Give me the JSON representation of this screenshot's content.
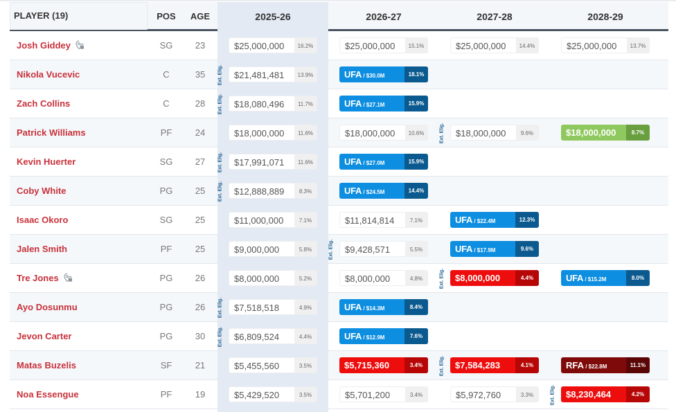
{
  "header": {
    "player_label": "PLAYER (19)",
    "pos_label": "POS",
    "age_label": "AGE",
    "seasons": [
      "2025-26",
      "2026-27",
      "2027-28",
      "2028-29"
    ]
  },
  "ext_label": "Ext. Elig.",
  "colors": {
    "player_name": "#c8313a",
    "ufa": "#0d8ee0",
    "ufa_pct": "#0b5a8f",
    "rfa": "#7f0a0a",
    "option_red": "#ee0d0d",
    "option_green": "#8fc85e",
    "highlight_column": "#e4eaf3",
    "header_border": "#4a5360"
  },
  "rows": [
    {
      "name": "Josh Giddey",
      "lock": true,
      "pos": "SG",
      "age": "23",
      "ext": [],
      "cells": [
        {
          "type": "plain",
          "amount": "$25,000,000",
          "pct": "16.2%"
        },
        {
          "type": "plain",
          "amount": "$25,000,000",
          "pct": "15.1%"
        },
        {
          "type": "plain",
          "amount": "$25,000,000",
          "pct": "14.4%"
        },
        {
          "type": "plain",
          "amount": "$25,000,000",
          "pct": "13.7%"
        }
      ]
    },
    {
      "name": "Nikola Vucevic",
      "lock": false,
      "pos": "C",
      "age": "35",
      "ext": [
        0
      ],
      "cells": [
        {
          "type": "plain",
          "amount": "$21,481,481",
          "pct": "13.9%"
        },
        {
          "type": "ufa",
          "label": "UFA",
          "est": " / $30.0M",
          "pct": "18.1%"
        },
        null,
        null
      ]
    },
    {
      "name": "Zach Collins",
      "lock": false,
      "pos": "C",
      "age": "28",
      "ext": [
        0
      ],
      "cells": [
        {
          "type": "plain",
          "amount": "$18,080,496",
          "pct": "11.7%"
        },
        {
          "type": "ufa",
          "label": "UFA",
          "est": " / $27.1M",
          "pct": "15.9%"
        },
        null,
        null
      ]
    },
    {
      "name": "Patrick Williams",
      "lock": false,
      "pos": "PF",
      "age": "24",
      "ext": [
        2
      ],
      "cells": [
        {
          "type": "plain",
          "amount": "$18,000,000",
          "pct": "11.6%"
        },
        {
          "type": "plain",
          "amount": "$18,000,000",
          "pct": "10.6%"
        },
        {
          "type": "plain",
          "amount": "$18,000,000",
          "pct": "9.6%"
        },
        {
          "type": "green",
          "amount": "$18,000,000",
          "pct": "8.7%"
        }
      ]
    },
    {
      "name": "Kevin Huerter",
      "lock": false,
      "pos": "SG",
      "age": "27",
      "ext": [
        0
      ],
      "cells": [
        {
          "type": "plain",
          "amount": "$17,991,071",
          "pct": "11.6%"
        },
        {
          "type": "ufa",
          "label": "UFA",
          "est": " / $27.0M",
          "pct": "15.9%"
        },
        null,
        null
      ]
    },
    {
      "name": "Coby White",
      "lock": false,
      "pos": "PG",
      "age": "25",
      "ext": [
        0
      ],
      "cells": [
        {
          "type": "plain",
          "amount": "$12,888,889",
          "pct": "8.3%"
        },
        {
          "type": "ufa",
          "label": "UFA",
          "est": " / $24.5M",
          "pct": "14.4%"
        },
        null,
        null
      ]
    },
    {
      "name": "Isaac Okoro",
      "lock": false,
      "pos": "SG",
      "age": "25",
      "ext": [],
      "cells": [
        {
          "type": "plain",
          "amount": "$11,000,000",
          "pct": "7.1%"
        },
        {
          "type": "plain",
          "amount": "$11,814,814",
          "pct": "7.1%"
        },
        {
          "type": "ufa",
          "label": "UFA",
          "est": " / $22.4M",
          "pct": "12.3%"
        },
        null
      ]
    },
    {
      "name": "Jalen Smith",
      "lock": false,
      "pos": "PF",
      "age": "25",
      "ext": [
        1
      ],
      "cells": [
        {
          "type": "plain",
          "amount": "$9,000,000",
          "pct": "5.8%"
        },
        {
          "type": "plain",
          "amount": "$9,428,571",
          "pct": "5.5%"
        },
        {
          "type": "ufa",
          "label": "UFA",
          "est": " / $17.9M",
          "pct": "9.6%"
        },
        null
      ]
    },
    {
      "name": "Tre Jones",
      "lock": true,
      "pos": "PG",
      "age": "26",
      "ext": [
        2
      ],
      "cells": [
        {
          "type": "plain",
          "amount": "$8,000,000",
          "pct": "5.2%"
        },
        {
          "type": "plain",
          "amount": "$8,000,000",
          "pct": "4.8%"
        },
        {
          "type": "red",
          "amount": "$8,000,000",
          "pct": "4.4%"
        },
        {
          "type": "ufa",
          "label": "UFA",
          "est": " / $15.2M",
          "pct": "8.0%"
        }
      ]
    },
    {
      "name": "Ayo Dosunmu",
      "lock": false,
      "pos": "PG",
      "age": "26",
      "ext": [
        0
      ],
      "cells": [
        {
          "type": "plain",
          "amount": "$7,518,518",
          "pct": "4.9%"
        },
        {
          "type": "ufa",
          "label": "UFA",
          "est": " / $14.3M",
          "pct": "8.4%"
        },
        null,
        null
      ]
    },
    {
      "name": "Jevon Carter",
      "lock": false,
      "pos": "PG",
      "age": "30",
      "ext": [
        0
      ],
      "cells": [
        {
          "type": "plain",
          "amount": "$6,809,524",
          "pct": "4.4%"
        },
        {
          "type": "ufa",
          "label": "UFA",
          "est": " / $12.9M",
          "pct": "7.6%"
        },
        null,
        null
      ]
    },
    {
      "name": "Matas Buzelis",
      "lock": false,
      "pos": "SF",
      "age": "21",
      "ext": [
        2
      ],
      "cells": [
        {
          "type": "plain",
          "amount": "$5,455,560",
          "pct": "3.5%"
        },
        {
          "type": "red",
          "amount": "$5,715,360",
          "pct": "3.4%"
        },
        {
          "type": "red",
          "amount": "$7,584,283",
          "pct": "4.1%"
        },
        {
          "type": "rfa",
          "label": "RFA",
          "est": " / $22.8M",
          "pct": "11.1%"
        }
      ]
    },
    {
      "name": "Noa Essengue",
      "lock": false,
      "pos": "PF",
      "age": "19",
      "ext": [
        3
      ],
      "cells": [
        {
          "type": "plain",
          "amount": "$5,429,520",
          "pct": "3.5%"
        },
        {
          "type": "plain",
          "amount": "$5,701,200",
          "pct": "3.4%"
        },
        {
          "type": "plain",
          "amount": "$5,972,760",
          "pct": "3.3%"
        },
        {
          "type": "red",
          "amount": "$8,230,464",
          "pct": "4.2%"
        }
      ]
    }
  ]
}
